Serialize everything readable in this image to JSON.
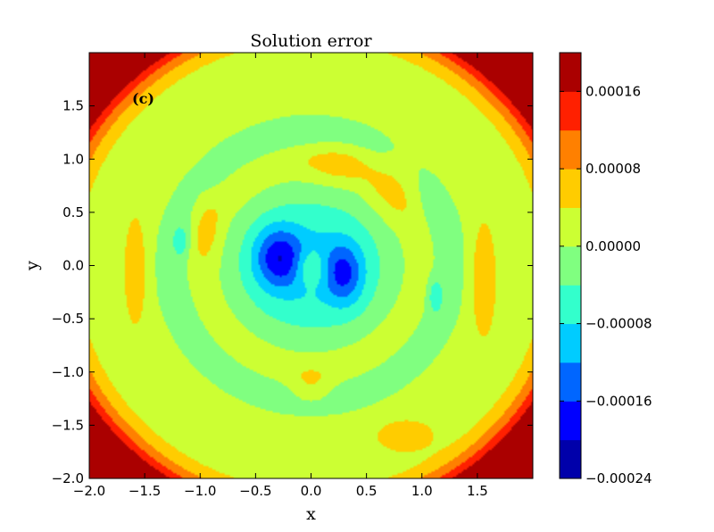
{
  "chart_data": {
    "type": "heatmap",
    "subtype": "filled-contour",
    "title": "Solution error",
    "xlabel": "x",
    "ylabel": "y",
    "panel_label": "(c)",
    "xlim": [
      -2.0,
      2.0
    ],
    "ylim": [
      -2.0,
      2.0
    ],
    "xticks": [
      -2.0,
      -1.5,
      -1.0,
      -0.5,
      0.0,
      0.5,
      1.0,
      1.5
    ],
    "xtick_labels": [
      "−2.0",
      "−1.5",
      "−1.0",
      "−0.5",
      "0.0",
      "0.5",
      "1.0",
      "1.5"
    ],
    "yticks": [
      -2.0,
      -1.5,
      -1.0,
      -0.5,
      0.0,
      0.5,
      1.0,
      1.5
    ],
    "ytick_labels": [
      "−2.0",
      "−1.5",
      "−1.0",
      "−0.5",
      "0.0",
      "0.5",
      "1.0",
      "1.5"
    ],
    "colorbar": {
      "levels": [
        -0.00024,
        -0.0002,
        -0.00016,
        -0.00012,
        -8e-05,
        -4e-05,
        0.0,
        4e-05,
        8e-05,
        0.00012,
        0.00016,
        0.0002
      ],
      "colors": [
        "#0000aa",
        "#0000ff",
        "#0066ff",
        "#00ccff",
        "#33ffcc",
        "#80ff80",
        "#ccff33",
        "#ffcc00",
        "#ff8000",
        "#ff2000",
        "#aa0000"
      ],
      "ticks": [
        -0.00024,
        -0.00016,
        -8e-05,
        0.0,
        8e-05,
        0.00016
      ],
      "tick_labels": [
        "−0.00024",
        "−0.00016",
        "−0.00008",
        "0.00000",
        "0.00008",
        "0.00016"
      ]
    },
    "grid": false
  }
}
